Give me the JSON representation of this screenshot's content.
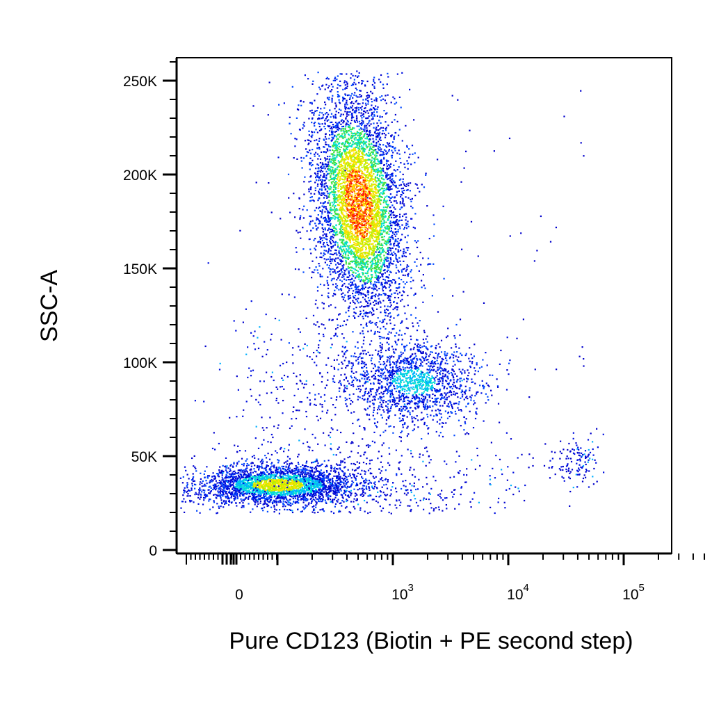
{
  "chart_data": {
    "type": "scatter",
    "title": "",
    "xlabel": "Pure CD123 (Biotin + PE second step)",
    "ylabel": "SSC-A",
    "x_scale": "biexponential",
    "ylim": [
      0,
      260000
    ],
    "y_ticks": [
      {
        "value": 0,
        "label": "0"
      },
      {
        "value": 50000,
        "label": "50K"
      },
      {
        "value": 100000,
        "label": "100K"
      },
      {
        "value": 150000,
        "label": "150K"
      },
      {
        "value": 200000,
        "label": "200K"
      },
      {
        "value": 250000,
        "label": "250K"
      }
    ],
    "x_ticks": [
      {
        "value": 0,
        "base": "0",
        "exp": ""
      },
      {
        "value": 1000,
        "base": "10",
        "exp": "3"
      },
      {
        "value": 10000,
        "base": "10",
        "exp": "4"
      },
      {
        "value": 100000,
        "base": "10",
        "exp": "5"
      }
    ],
    "grid": false,
    "color_map": "density (blue → cyan → green → yellow → red)",
    "populations": [
      {
        "name": "",
        "x_center": 500,
        "y_center": 185000,
        "density": "highest"
      },
      {
        "name": "",
        "x_center": 1500,
        "y_center": 90000,
        "density": "medium"
      },
      {
        "name": "",
        "x_center": 100,
        "y_center": 35000,
        "density": "high"
      },
      {
        "name": "",
        "x_center": 40000,
        "y_center": 48000,
        "density": "low"
      }
    ]
  }
}
